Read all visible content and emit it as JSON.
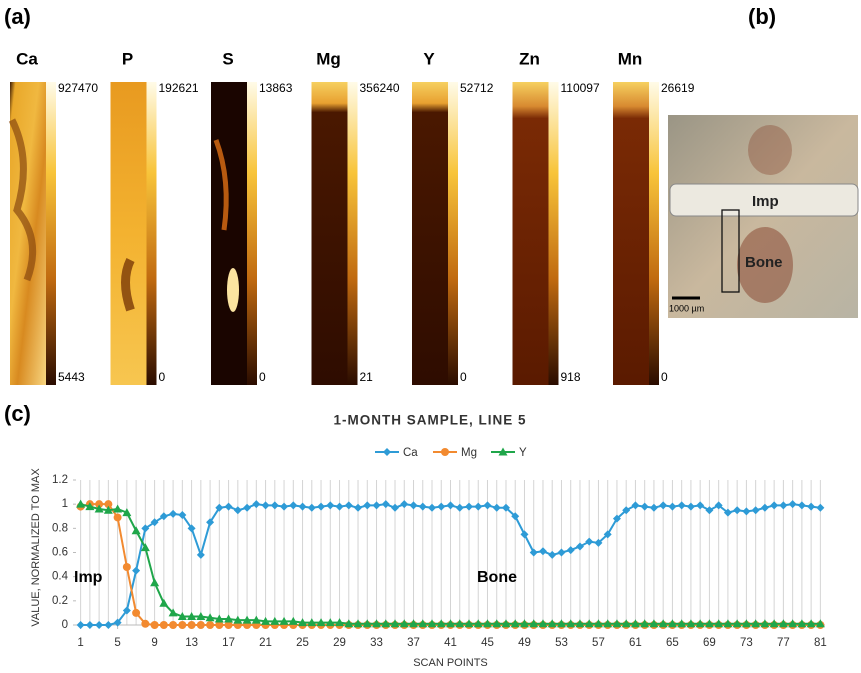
{
  "panel_labels": [
    "(a)",
    "(b)",
    "(c)"
  ],
  "maps": [
    {
      "element": "Ca",
      "max": 927470,
      "min": 5443
    },
    {
      "element": "P",
      "max": 192621,
      "min": 0
    },
    {
      "element": "S",
      "max": 13863,
      "min": 0
    },
    {
      "element": "Mg",
      "max": 356240,
      "min": 21
    },
    {
      "element": "Y",
      "max": 52712,
      "min": 0
    },
    {
      "element": "Zn",
      "max": 110097,
      "min": 918
    },
    {
      "element": "Mn",
      "max": 26619,
      "min": 0
    }
  ],
  "photo": {
    "labels": [
      "Imp",
      "Bone"
    ],
    "scale_bar": "1000 µm"
  },
  "chart_data": {
    "type": "line",
    "title": "1-MONTH SAMPLE, LINE 5",
    "x_label": "SCAN POINTS",
    "y_label": "VALUE, NORMALIZED TO MAX",
    "annotations": [
      "Imp",
      "Bone"
    ],
    "x": [
      1,
      2,
      3,
      4,
      5,
      6,
      7,
      8,
      9,
      10,
      11,
      12,
      13,
      14,
      15,
      16,
      17,
      18,
      19,
      20,
      21,
      22,
      23,
      24,
      25,
      26,
      27,
      28,
      29,
      30,
      31,
      32,
      33,
      34,
      35,
      36,
      37,
      38,
      39,
      40,
      41,
      42,
      43,
      44,
      45,
      46,
      47,
      48,
      49,
      50,
      51,
      52,
      53,
      54,
      55,
      56,
      57,
      58,
      59,
      60,
      61,
      62,
      63,
      64,
      65,
      66,
      67,
      68,
      69,
      70,
      71,
      72,
      73,
      74,
      75,
      76,
      77,
      78,
      79,
      80,
      81
    ],
    "xlim": [
      0.5,
      81.5
    ],
    "xticks": [
      1,
      5,
      9,
      13,
      17,
      21,
      25,
      29,
      33,
      37,
      41,
      45,
      49,
      53,
      57,
      61,
      65,
      69,
      73,
      77,
      81
    ],
    "ylim": [
      0,
      1.2
    ],
    "yticks": [
      0,
      0.2,
      0.4,
      0.6,
      0.8,
      1,
      1.2
    ],
    "grid": "x",
    "series": [
      {
        "name": "Ca",
        "color": "#2e9bd6",
        "marker": "diamond",
        "values": [
          0,
          0,
          0,
          0,
          0.02,
          0.12,
          0.45,
          0.8,
          0.85,
          0.9,
          0.92,
          0.91,
          0.8,
          0.58,
          0.85,
          0.97,
          0.98,
          0.95,
          0.97,
          1.0,
          0.99,
          0.99,
          0.98,
          0.99,
          0.98,
          0.97,
          0.98,
          0.99,
          0.98,
          0.99,
          0.97,
          0.99,
          0.99,
          1.0,
          0.97,
          1.0,
          0.99,
          0.98,
          0.97,
          0.98,
          0.99,
          0.97,
          0.98,
          0.98,
          0.99,
          0.97,
          0.97,
          0.9,
          0.75,
          0.6,
          0.61,
          0.58,
          0.6,
          0.62,
          0.65,
          0.69,
          0.68,
          0.75,
          0.88,
          0.95,
          0.99,
          0.98,
          0.97,
          0.99,
          0.98,
          0.99,
          0.98,
          0.99,
          0.95,
          0.99,
          0.93,
          0.95,
          0.94,
          0.95,
          0.97,
          0.99,
          0.99,
          1.0,
          0.99,
          0.98,
          0.97
        ]
      },
      {
        "name": "Mg",
        "color": "#f28a30",
        "marker": "circle",
        "values": [
          0.98,
          1.0,
          1.0,
          1.0,
          0.89,
          0.48,
          0.1,
          0.01,
          0,
          0,
          0,
          0,
          0,
          0,
          0,
          0,
          0,
          0,
          0,
          0,
          0,
          0,
          0,
          0,
          0,
          0,
          0,
          0,
          0,
          0,
          0,
          0,
          0,
          0,
          0,
          0,
          0,
          0,
          0,
          0,
          0,
          0,
          0,
          0,
          0,
          0,
          0,
          0,
          0,
          0,
          0,
          0,
          0,
          0,
          0,
          0,
          0,
          0,
          0,
          0,
          0,
          0,
          0,
          0,
          0,
          0,
          0,
          0,
          0,
          0,
          0,
          0,
          0,
          0,
          0,
          0,
          0,
          0,
          0,
          0,
          0
        ]
      },
      {
        "name": "Y",
        "color": "#1fa64a",
        "marker": "triangle",
        "values": [
          1.0,
          0.98,
          0.96,
          0.95,
          0.96,
          0.93,
          0.78,
          0.64,
          0.35,
          0.18,
          0.1,
          0.07,
          0.07,
          0.07,
          0.06,
          0.05,
          0.05,
          0.04,
          0.04,
          0.04,
          0.03,
          0.03,
          0.03,
          0.03,
          0.02,
          0.02,
          0.02,
          0.02,
          0.02,
          0.01,
          0.01,
          0.01,
          0.01,
          0.01,
          0.01,
          0.01,
          0.01,
          0.01,
          0.01,
          0.01,
          0.01,
          0.01,
          0.01,
          0.01,
          0.01,
          0.01,
          0.01,
          0.01,
          0.01,
          0.01,
          0.01,
          0.01,
          0.01,
          0.01,
          0.01,
          0.01,
          0.01,
          0.01,
          0.01,
          0.01,
          0.01,
          0.01,
          0.01,
          0.01,
          0.01,
          0.01,
          0.01,
          0.01,
          0.01,
          0.01,
          0.01,
          0.01,
          0.01,
          0.01,
          0.01,
          0.01,
          0.01,
          0.01,
          0.01,
          0.01,
          0.01
        ]
      }
    ]
  }
}
